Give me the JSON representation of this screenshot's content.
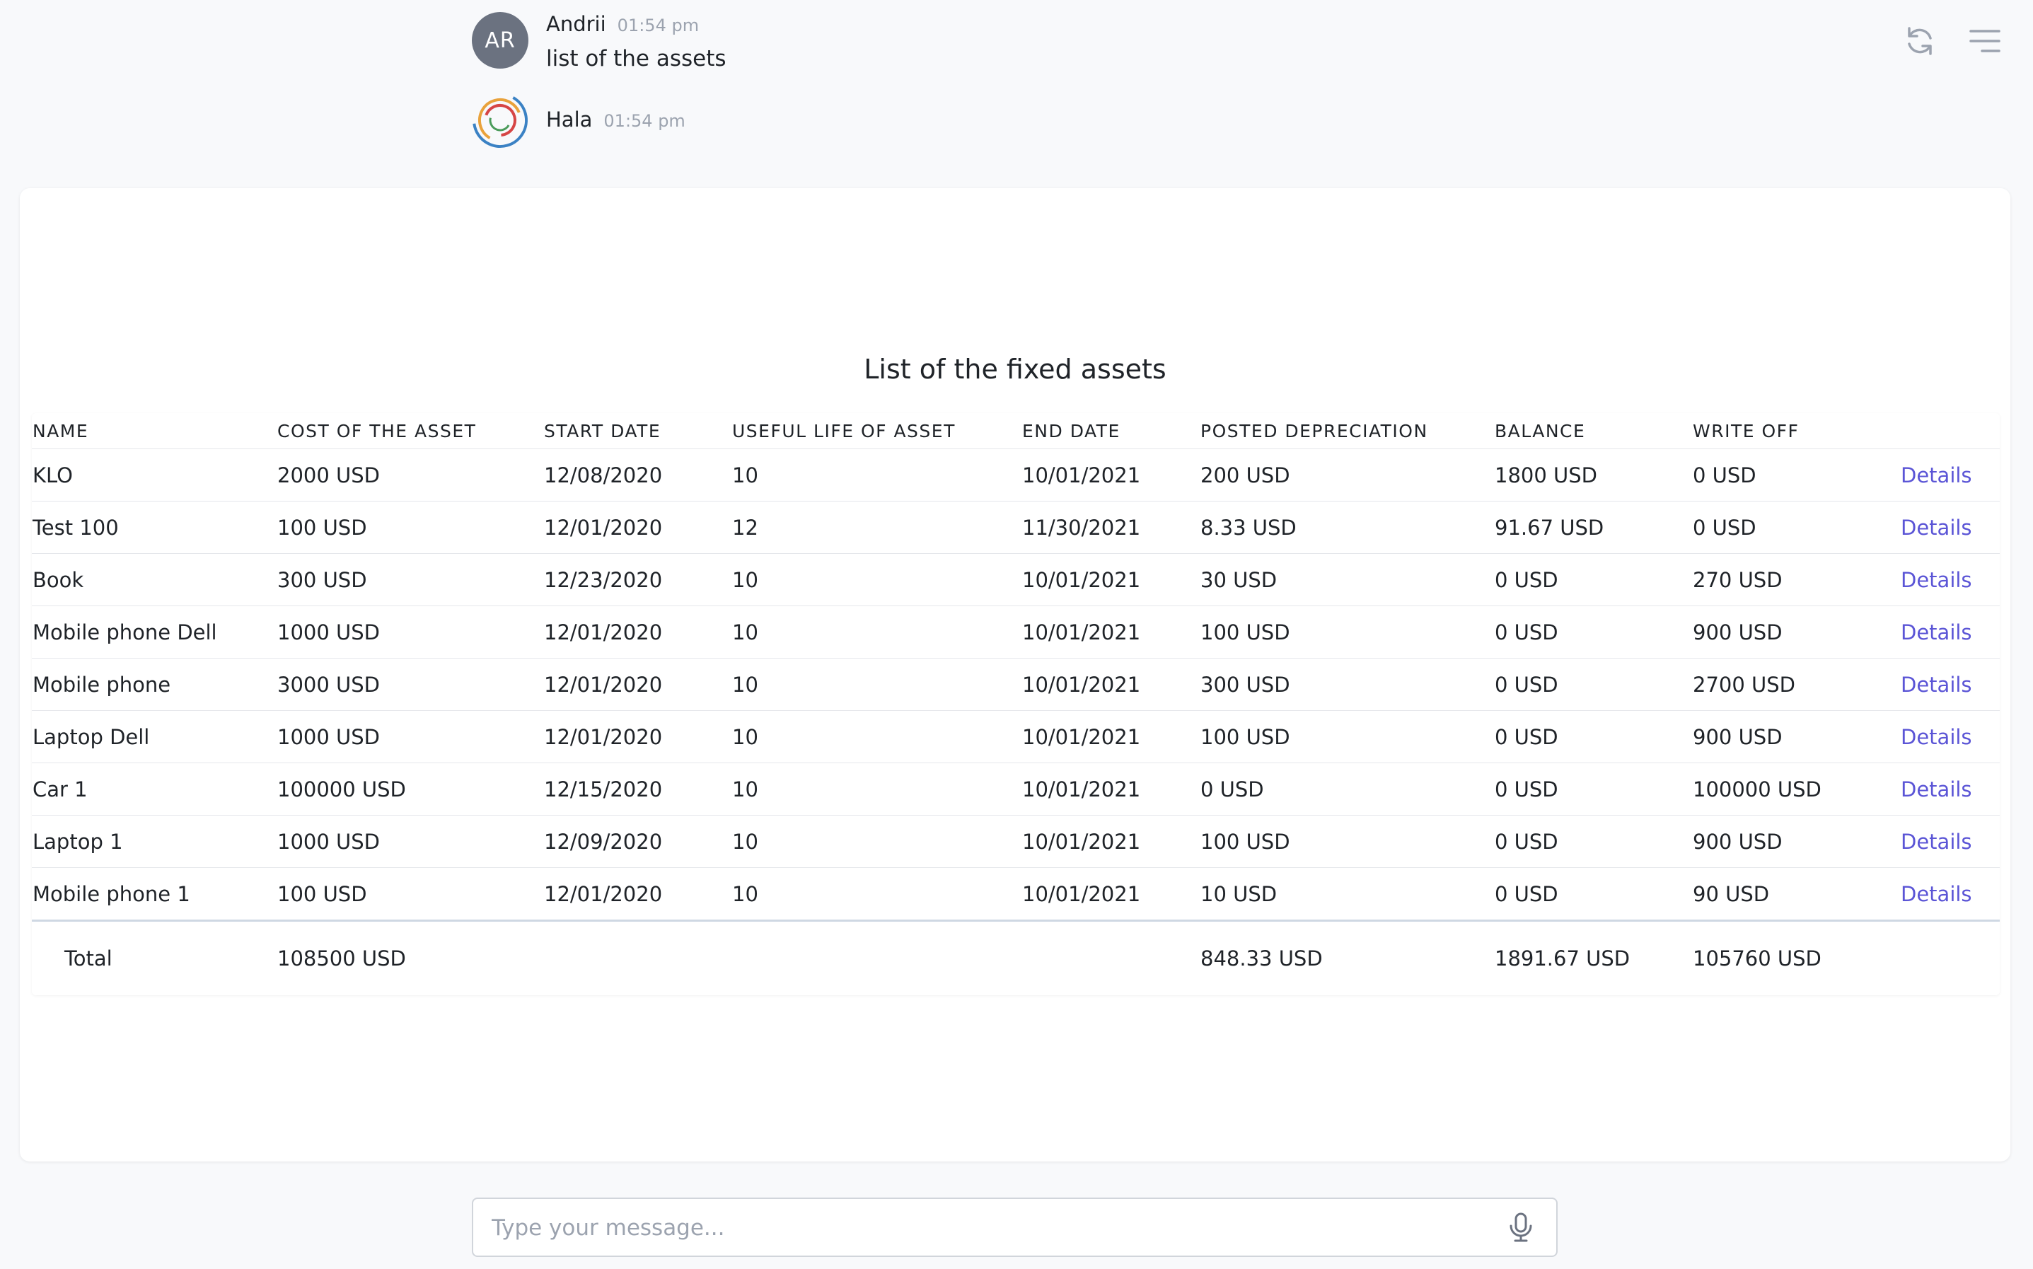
{
  "messages": [
    {
      "avatar": "AR",
      "author": "Andrii",
      "time": "01:54 pm",
      "text": "list of the assets"
    },
    {
      "avatar_icon": "hala-logo-icon",
      "author": "Hala",
      "time": "01:54 pm"
    }
  ],
  "toolbar": {
    "icons": [
      "refresh-icon",
      "menu-icon"
    ]
  },
  "assets": {
    "title": "List of the fixed assets",
    "columns": [
      "NAME",
      "COST OF THE ASSET",
      "START DATE",
      "USEFUL LIFE OF ASSET",
      "END DATE",
      "POSTED DEPRECIATION",
      "BALANCE",
      "WRITE OFF"
    ],
    "details_label": "Details",
    "rows": [
      [
        "KLO",
        "2000 USD",
        "12/08/2020",
        "10",
        "10/01/2021",
        "200 USD",
        "1800 USD",
        "0 USD"
      ],
      [
        "Test 100",
        "100 USD",
        "12/01/2020",
        "12",
        "11/30/2021",
        "8.33 USD",
        "91.67 USD",
        "0 USD"
      ],
      [
        "Book",
        "300 USD",
        "12/23/2020",
        "10",
        "10/01/2021",
        "30 USD",
        "0 USD",
        "270 USD"
      ],
      [
        "Mobile phone Dell",
        "1000 USD",
        "12/01/2020",
        "10",
        "10/01/2021",
        "100 USD",
        "0 USD",
        "900 USD"
      ],
      [
        "Mobile phone",
        "3000 USD",
        "12/01/2020",
        "10",
        "10/01/2021",
        "300 USD",
        "0 USD",
        "2700 USD"
      ],
      [
        "Laptop Dell",
        "1000 USD",
        "12/01/2020",
        "10",
        "10/01/2021",
        "100 USD",
        "0 USD",
        "900 USD"
      ],
      [
        "Car 1",
        "100000 USD",
        "12/15/2020",
        "10",
        "10/01/2021",
        "0 USD",
        "0 USD",
        "100000 USD"
      ],
      [
        "Laptop 1",
        "1000 USD",
        "12/09/2020",
        "10",
        "10/01/2021",
        "100 USD",
        "0 USD",
        "900 USD"
      ],
      [
        "Mobile phone 1",
        "100 USD",
        "12/01/2020",
        "10",
        "10/01/2021",
        "10 USD",
        "0 USD",
        "90 USD"
      ]
    ],
    "total": {
      "label": "Total",
      "cost": "108500 USD",
      "posted": "848.33 USD",
      "balance": "1891.67 USD",
      "writeoff": "105760 USD"
    }
  },
  "composer": {
    "placeholder": "Type your message...",
    "mic_icon": "microphone-icon"
  }
}
